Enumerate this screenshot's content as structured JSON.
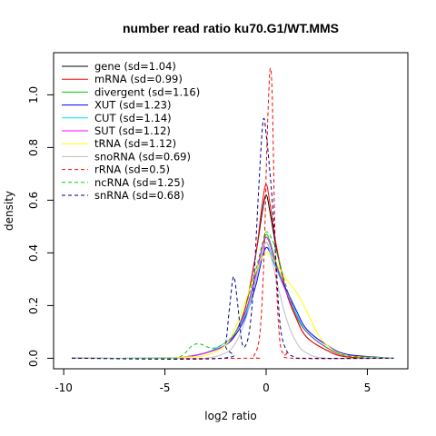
{
  "chart_data": {
    "type": "line",
    "title": "number read ratio ku70.G1/WT.MMS",
    "xlabel": "log2 ratio",
    "ylabel": "density",
    "xlim": [
      -10.5,
      7
    ],
    "ylim": [
      -0.04,
      1.16
    ],
    "xticks": [
      -10,
      -5,
      0,
      5
    ],
    "yticks": [
      0.0,
      0.2,
      0.4,
      0.6,
      0.8,
      1.0
    ],
    "grid": false,
    "legend_position": "top-left",
    "series": [
      {
        "name": "gene (sd=1.04)",
        "color": "#000000",
        "dash": "solid",
        "x": [
          -9.6,
          -5,
          -4,
          -3,
          -2,
          -1.5,
          -1,
          -0.5,
          -0.2,
          0,
          0.2,
          0.5,
          1,
          1.5,
          2,
          3,
          4,
          6.3
        ],
        "y": [
          0,
          0,
          0.005,
          0.02,
          0.05,
          0.1,
          0.2,
          0.4,
          0.55,
          0.62,
          0.55,
          0.42,
          0.25,
          0.15,
          0.08,
          0.03,
          0.005,
          0
        ]
      },
      {
        "name": "mRNA (sd=0.99)",
        "color": "#ff0000",
        "dash": "solid",
        "x": [
          -9.6,
          -5,
          -4,
          -3,
          -2,
          -1.5,
          -1,
          -0.5,
          -0.2,
          0,
          0.2,
          0.5,
          1,
          1.5,
          2,
          3,
          4,
          6.3
        ],
        "y": [
          0,
          0,
          0.005,
          0.02,
          0.05,
          0.1,
          0.2,
          0.4,
          0.58,
          0.66,
          0.58,
          0.43,
          0.25,
          0.15,
          0.08,
          0.03,
          0.005,
          0
        ]
      },
      {
        "name": "divergent (sd=1.16)",
        "color": "#00cd00",
        "dash": "solid",
        "x": [
          -9.6,
          -5,
          -4,
          -3,
          -2,
          -1.5,
          -1,
          -0.5,
          -0.2,
          0,
          0.2,
          0.5,
          1,
          1.5,
          2,
          3,
          4,
          6.3
        ],
        "y": [
          0,
          0,
          0.005,
          0.02,
          0.05,
          0.1,
          0.18,
          0.32,
          0.42,
          0.47,
          0.44,
          0.36,
          0.25,
          0.16,
          0.1,
          0.04,
          0.01,
          0
        ]
      },
      {
        "name": "XUT (sd=1.23)",
        "color": "#0000ff",
        "dash": "solid",
        "x": [
          -9.6,
          -5,
          -4,
          -3,
          -2,
          -1.5,
          -1,
          -0.5,
          -0.2,
          0,
          0.2,
          0.5,
          1,
          1.5,
          2,
          3,
          4,
          6.3
        ],
        "y": [
          0,
          0,
          0.005,
          0.02,
          0.05,
          0.09,
          0.16,
          0.28,
          0.38,
          0.42,
          0.4,
          0.34,
          0.26,
          0.18,
          0.11,
          0.05,
          0.015,
          0
        ]
      },
      {
        "name": "CUT (sd=1.14)",
        "color": "#00e5ee",
        "dash": "solid",
        "x": [
          -9.6,
          -5,
          -4,
          -3,
          -2,
          -1.5,
          -1,
          -0.5,
          -0.2,
          0,
          0.2,
          0.5,
          1,
          1.5,
          2,
          3,
          4,
          6.3
        ],
        "y": [
          0,
          0,
          0.005,
          0.02,
          0.06,
          0.1,
          0.17,
          0.3,
          0.4,
          0.44,
          0.41,
          0.34,
          0.25,
          0.17,
          0.1,
          0.04,
          0.01,
          0
        ]
      },
      {
        "name": "SUT (sd=1.12)",
        "color": "#ff00ff",
        "dash": "solid",
        "x": [
          -9.6,
          -5,
          -4,
          -3,
          -2,
          -1.5,
          -1,
          -0.5,
          -0.2,
          0,
          0.2,
          0.5,
          1,
          1.5,
          2,
          3,
          4,
          6.3
        ],
        "y": [
          0,
          0,
          0.005,
          0.02,
          0.05,
          0.1,
          0.18,
          0.32,
          0.42,
          0.46,
          0.43,
          0.35,
          0.25,
          0.16,
          0.1,
          0.04,
          0.01,
          0
        ]
      },
      {
        "name": "tRNA (sd=1.12)",
        "color": "#ffff00",
        "dash": "solid",
        "x": [
          -9.6,
          -5,
          -4,
          -3,
          -2,
          -1.5,
          -1,
          -0.5,
          0,
          0.5,
          1,
          1.5,
          2,
          2.5,
          3,
          4,
          6.3
        ],
        "y": [
          0,
          0,
          0.005,
          0.01,
          0.05,
          0.12,
          0.22,
          0.33,
          0.4,
          0.36,
          0.3,
          0.25,
          0.18,
          0.1,
          0.05,
          0.01,
          0
        ]
      },
      {
        "name": "snoRNA (sd=0.69)",
        "color": "#bebebe",
        "dash": "solid",
        "x": [
          -9.6,
          -5,
          -3,
          -2,
          -1.5,
          -1,
          -0.5,
          -0.2,
          0,
          0.2,
          0.5,
          1,
          1.5,
          2,
          3,
          6.3
        ],
        "y": [
          0,
          0,
          0,
          0.02,
          0.06,
          0.15,
          0.3,
          0.4,
          0.44,
          0.4,
          0.3,
          0.15,
          0.06,
          0.02,
          0,
          0
        ]
      },
      {
        "name": "rRNA (sd=0.5)",
        "color": "#ff0000",
        "dash": "dashed",
        "x": [
          -9.6,
          -1,
          -0.6,
          -0.3,
          -0.1,
          0,
          0.1,
          0.2,
          0.3,
          0.4,
          0.5,
          0.7,
          1,
          1.3,
          6.3
        ],
        "y": [
          0,
          0,
          0.01,
          0.1,
          0.4,
          0.7,
          0.95,
          1.1,
          1.0,
          0.6,
          0.3,
          0.05,
          0.02,
          0,
          0
        ]
      },
      {
        "name": "ncRNA (sd=1.25)",
        "color": "#00cd00",
        "dash": "dashed",
        "x": [
          -9.6,
          -5,
          -4.3,
          -4,
          -3.7,
          -3.4,
          -3.1,
          -2.8,
          -2.5,
          -2,
          -1.5,
          -1,
          -0.5,
          -0.2,
          0,
          0.3,
          0.6,
          1,
          1.5,
          2,
          3,
          4,
          6.3
        ],
        "y": [
          0,
          0,
          0.005,
          0.02,
          0.045,
          0.055,
          0.05,
          0.04,
          0.04,
          0.06,
          0.1,
          0.2,
          0.34,
          0.43,
          0.48,
          0.45,
          0.38,
          0.27,
          0.16,
          0.1,
          0.04,
          0.01,
          0
        ]
      },
      {
        "name": "snRNA (sd=0.68)",
        "color": "#00008b",
        "dash": "dashed",
        "x": [
          -9.6,
          -2.2,
          -2,
          -1.8,
          -1.6,
          -1.4,
          -1.2,
          -1,
          -0.8,
          -0.6,
          -0.4,
          -0.2,
          -0.1,
          0,
          0.1,
          0.3,
          0.5,
          0.7,
          1,
          1.4,
          2,
          6.3
        ],
        "y": [
          0,
          0,
          0.05,
          0.2,
          0.31,
          0.2,
          0.06,
          0.05,
          0.12,
          0.3,
          0.6,
          0.86,
          0.91,
          0.85,
          0.78,
          0.6,
          0.35,
          0.12,
          0.03,
          0.005,
          0,
          0
        ]
      }
    ]
  }
}
